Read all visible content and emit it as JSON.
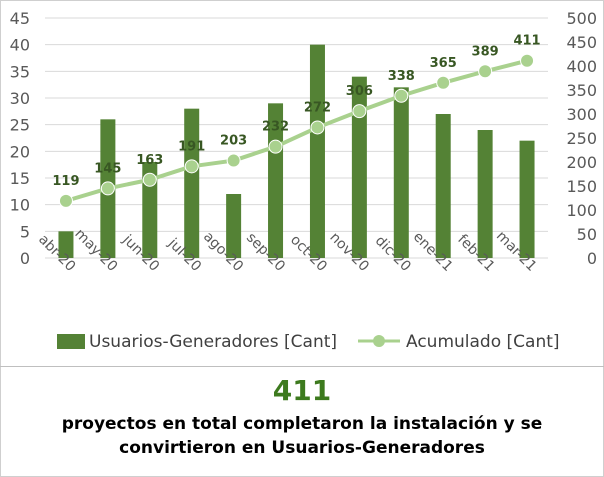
{
  "chart_data": {
    "type": "bar+line",
    "categories": [
      "abr-20",
      "may-20",
      "jun-20",
      "jul-20",
      "ago-20",
      "sep-20",
      "oct-20",
      "nov-20",
      "dic-20",
      "ene-21",
      "feb-21",
      "mar-21"
    ],
    "series": [
      {
        "name": "Usuarios-Generadores [Cant]",
        "type": "bar",
        "axis": "left",
        "values": [
          5,
          26,
          18,
          28,
          12,
          29,
          40,
          34,
          32,
          27,
          24,
          22
        ]
      },
      {
        "name": "Acumulado [Cant]",
        "type": "line",
        "axis": "right",
        "values": [
          119,
          145,
          163,
          191,
          203,
          232,
          272,
          306,
          338,
          365,
          389,
          411
        ]
      }
    ],
    "left_axis": {
      "min": 0,
      "max": 45,
      "step": 5,
      "ticks": [
        "0",
        "5",
        "10",
        "15",
        "20",
        "25",
        "30",
        "35",
        "40",
        "45"
      ]
    },
    "right_axis": {
      "min": 0,
      "max": 500,
      "step": 50,
      "ticks": [
        "0",
        "50",
        "100",
        "150",
        "200",
        "250",
        "300",
        "350",
        "400",
        "450",
        "500"
      ]
    },
    "legend_position": "bottom",
    "bar_color": "#548235",
    "line_color": "#a9d18e",
    "label_color": "#385723"
  },
  "footer": {
    "value": "411",
    "caption": "proyectos en total completaron la instalación y se convirtieron en Usuarios-Generadores"
  }
}
